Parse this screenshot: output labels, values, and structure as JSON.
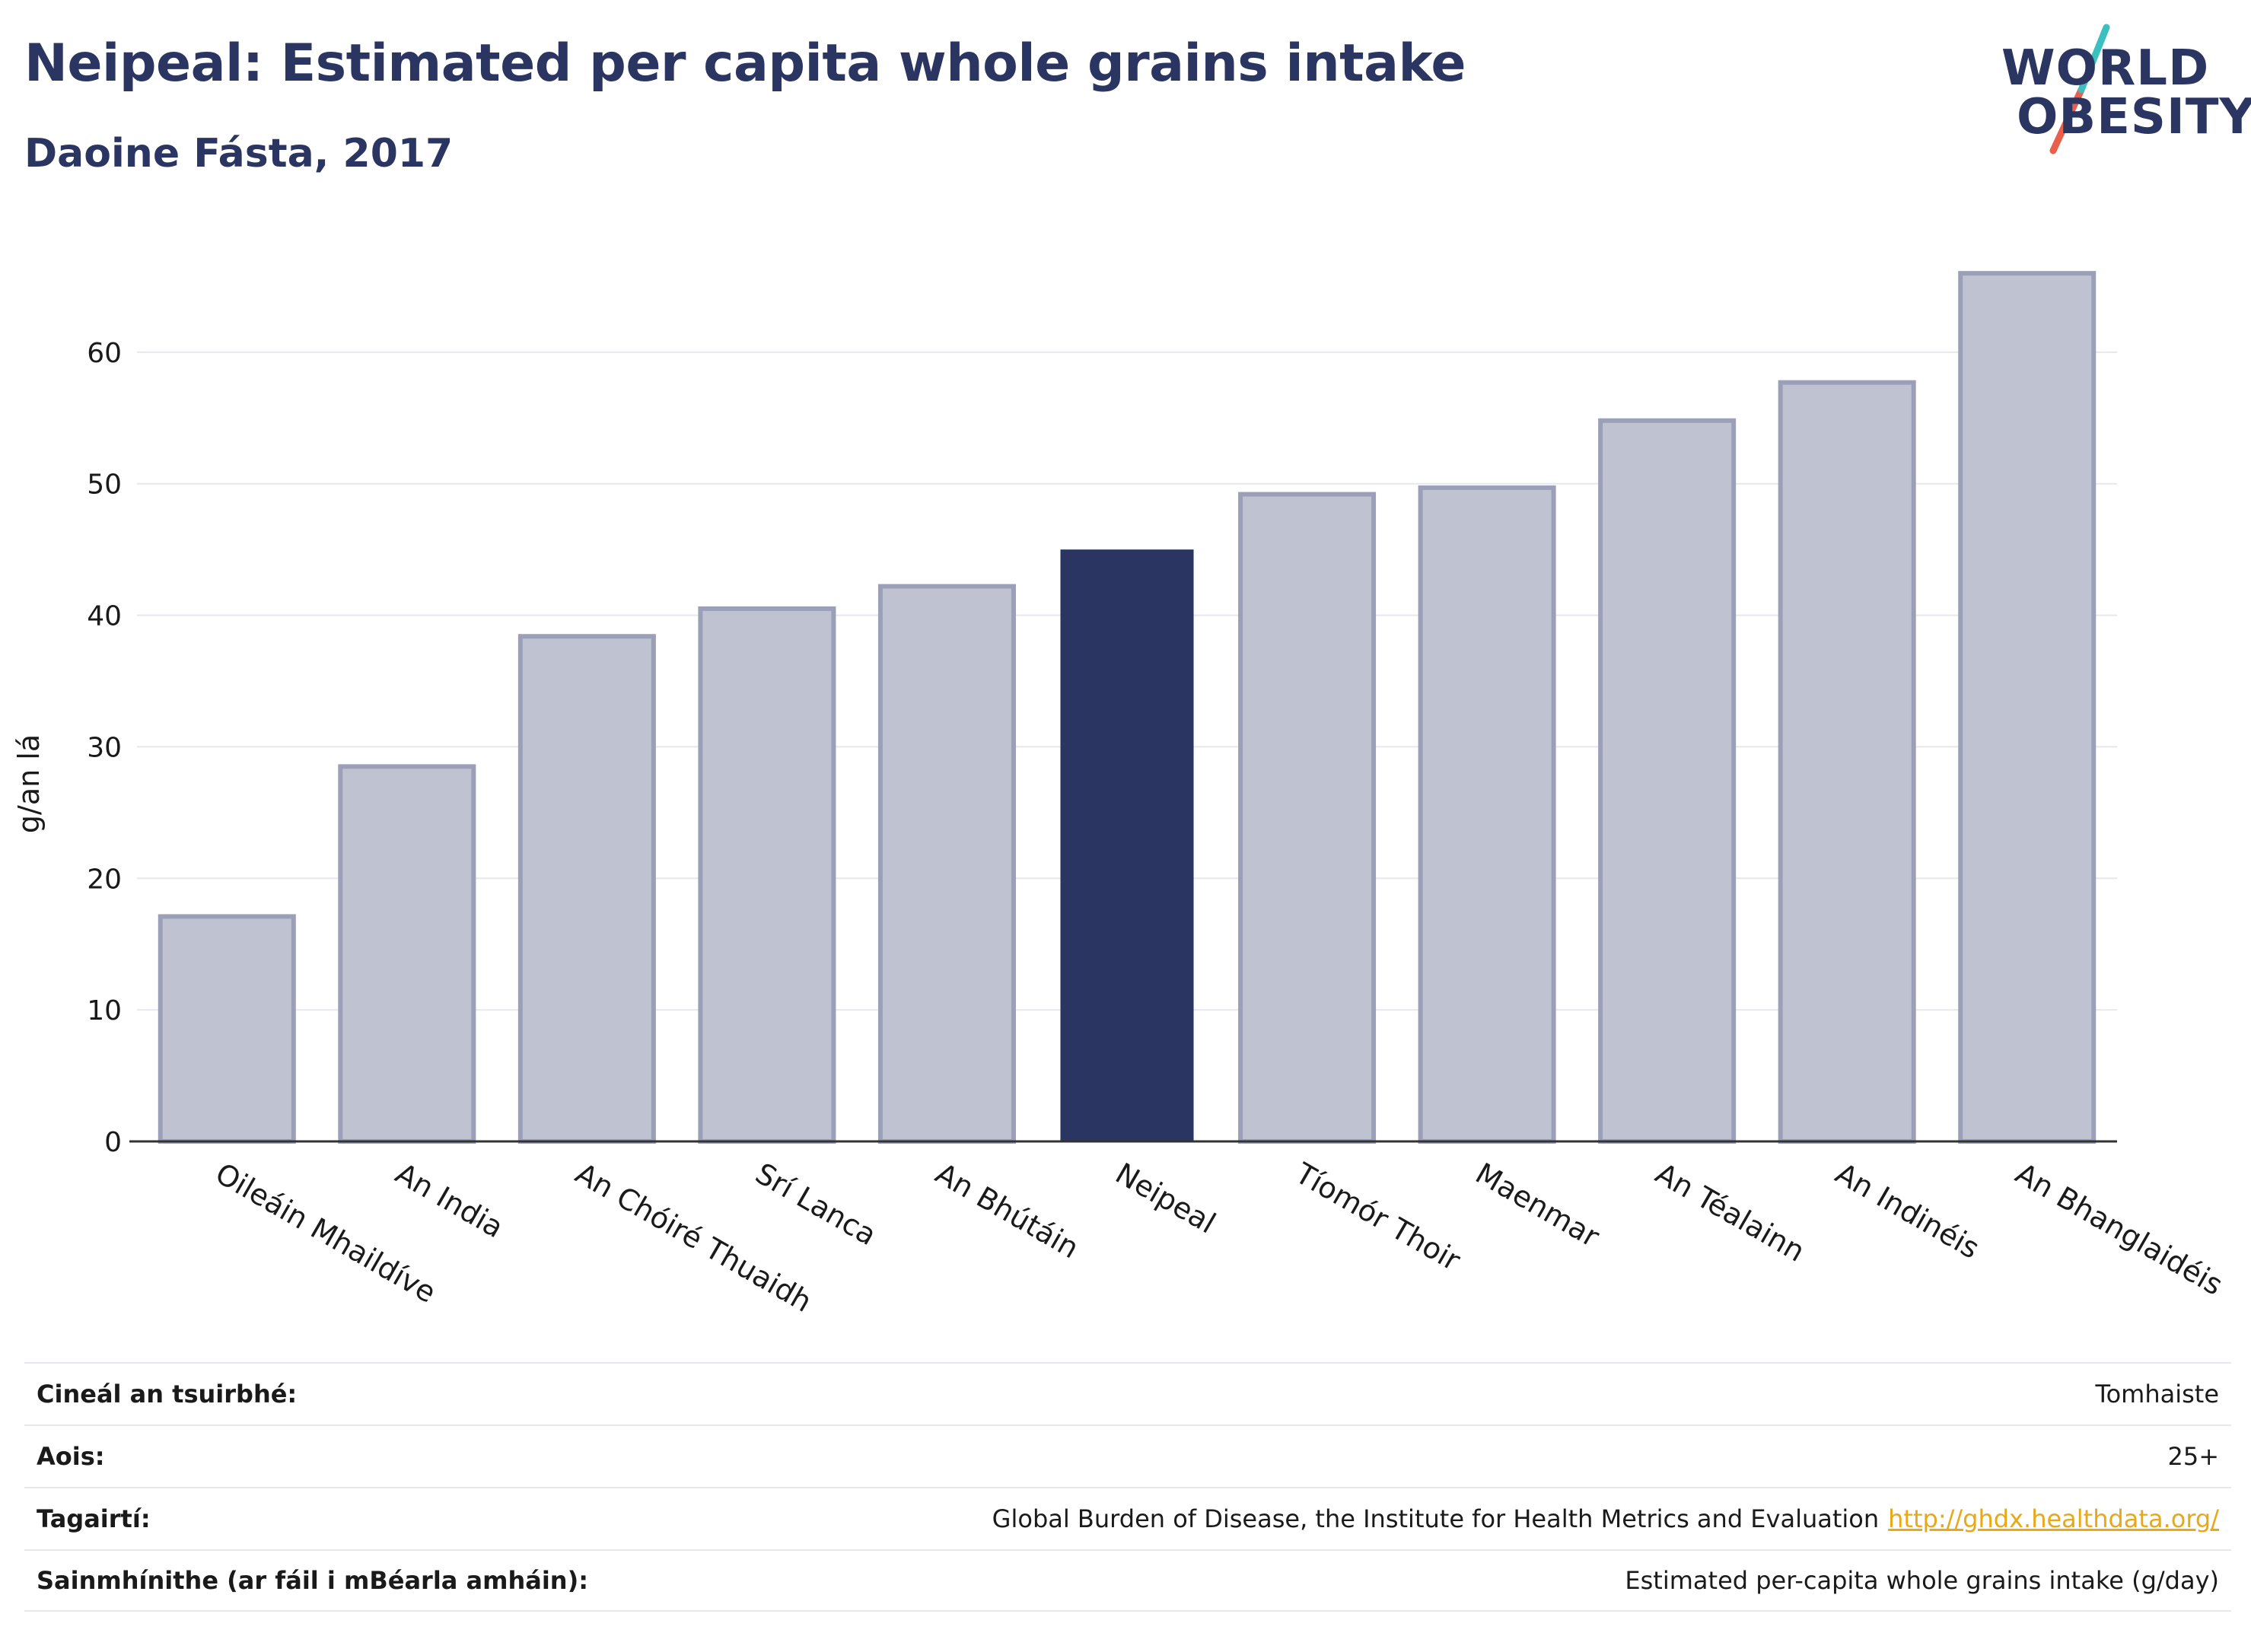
{
  "header": {
    "title": "Neipeal: Estimated per capita whole grains intake",
    "subtitle": "Daoine Fásta, 2017",
    "logo_text": "WORLD OBESITY"
  },
  "colors": {
    "highlight": "#2b3561",
    "bar": "#bfc2d0",
    "bar_border": "#9ba0b8",
    "title": "#2b3561",
    "link": "#e8a817",
    "logo_teal": "#3bbfbf",
    "logo_red": "#e8604c"
  },
  "chart_data": {
    "type": "bar",
    "title": "Neipeal: Estimated per capita whole grains intake",
    "subtitle": "Daoine Fásta, 2017",
    "ylabel": "g/an lá",
    "xlabel": "",
    "ylim": [
      0,
      70
    ],
    "yticks": [
      0,
      10,
      20,
      30,
      40,
      50,
      60
    ],
    "grid": true,
    "highlight": "Neipeal",
    "categories": [
      "Oileáin Mhaildíve",
      "An India",
      "An Chóiré Thuaidh",
      "Srí Lanca",
      "An Bhútáin",
      "Neipeal",
      "Tíomór Thoir",
      "Maenmar",
      "An Téalainn",
      "An Indinéis",
      "An Bhanglaidéis"
    ],
    "values": [
      17.1,
      28.5,
      38.4,
      40.5,
      42.2,
      45.0,
      49.2,
      49.7,
      54.8,
      57.7,
      66.0
    ]
  },
  "info": [
    {
      "key": "Cineál an tsuirbhé:",
      "value": "Tomhaiste"
    },
    {
      "key": "Aois:",
      "value": "25+"
    },
    {
      "key": "Tagairtí:",
      "value": "Global Burden of Disease, the Institute for Health Metrics and Evaluation",
      "link": "http://ghdx.healthdata.org/"
    },
    {
      "key": "Sainmhínithe (ar fáil i mBéarla amháin):",
      "value": "Estimated per-capita whole grains intake (g/day)"
    }
  ]
}
